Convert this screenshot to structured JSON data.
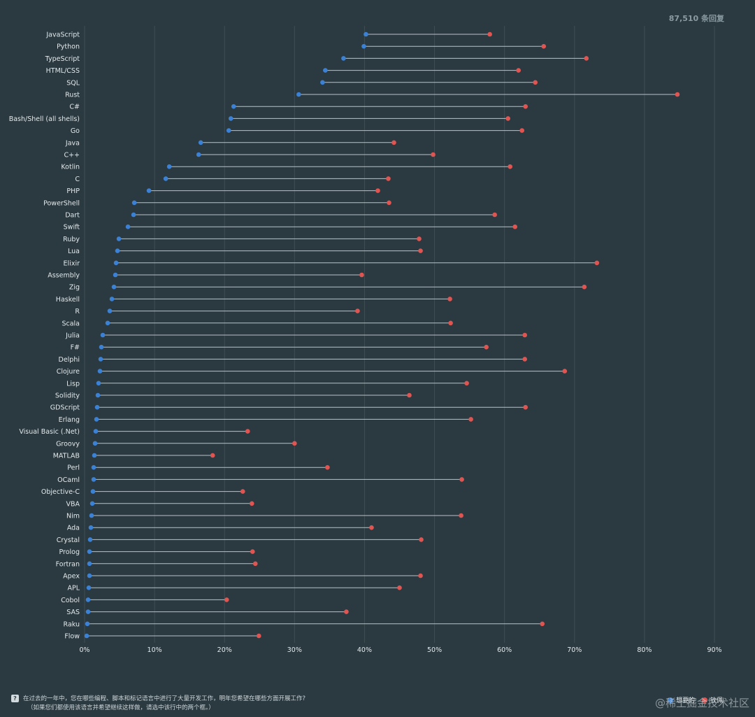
{
  "header": {
    "responses": "87,510 条回复"
  },
  "footer": {
    "question_icon": "?",
    "question": "在过去的一年中，您在哪些编程、脚本和标记语言中进行了大量开发工作，明年您希望在哪些方面开展工作?",
    "note": "（如果您们都使用该语言并希望继续这样做，请选中该行中的两个框。）"
  },
  "legend": {
    "want": "想要的",
    "admired": "钦佩"
  },
  "watermark": "@稀土掘金技术社区",
  "colors": {
    "want": "#3b82d6",
    "admired": "#e05552",
    "background": "#2b3a40"
  },
  "chart_data": {
    "type": "dumbbell",
    "x_ticks": [
      "0%",
      "10%",
      "20%",
      "30%",
      "40%",
      "50%",
      "60%",
      "70%",
      "80%",
      "90%"
    ],
    "xlim": [
      0,
      90
    ],
    "series": [
      {
        "name": "想要的",
        "key": "want"
      },
      {
        "name": "钦佩",
        "key": "admired"
      }
    ],
    "categories": [
      "JavaScript",
      "Python",
      "TypeScript",
      "HTML/CSS",
      "SQL",
      "Rust",
      "C#",
      "Bash/Shell (all shells)",
      "Go",
      "Java",
      "C++",
      "Kotlin",
      "C",
      "PHP",
      "PowerShell",
      "Dart",
      "Swift",
      "Ruby",
      "Lua",
      "Elixir",
      "Assembly",
      "Zig",
      "Haskell",
      "R",
      "Scala",
      "Julia",
      "F#",
      "Delphi",
      "Clojure",
      "Lisp",
      "Solidity",
      "GDScript",
      "Erlang",
      "Visual Basic (.Net)",
      "Groovy",
      "MATLAB",
      "Perl",
      "OCaml",
      "Objective-C",
      "VBA",
      "Nim",
      "Ada",
      "Crystal",
      "Prolog",
      "Fortran",
      "Apex",
      "APL",
      "Cobol",
      "SAS",
      "Raku",
      "Flow"
    ],
    "want": [
      40.2,
      39.9,
      37.0,
      34.4,
      34.0,
      30.6,
      21.3,
      20.9,
      20.6,
      16.6,
      16.3,
      12.1,
      11.6,
      9.2,
      7.1,
      7.0,
      6.2,
      4.9,
      4.7,
      4.5,
      4.4,
      4.2,
      3.9,
      3.6,
      3.3,
      2.6,
      2.4,
      2.3,
      2.2,
      2.0,
      1.9,
      1.8,
      1.7,
      1.6,
      1.5,
      1.4,
      1.3,
      1.3,
      1.2,
      1.1,
      1.0,
      0.9,
      0.8,
      0.7,
      0.7,
      0.7,
      0.6,
      0.5,
      0.5,
      0.4,
      0.3
    ],
    "admired": [
      57.9,
      65.6,
      71.7,
      62.0,
      64.4,
      84.7,
      63.0,
      60.5,
      62.5,
      44.2,
      49.8,
      60.8,
      43.4,
      41.9,
      43.5,
      58.6,
      61.5,
      47.8,
      48.0,
      73.2,
      39.6,
      71.4,
      52.2,
      39.0,
      52.3,
      62.9,
      57.4,
      62.9,
      68.6,
      54.6,
      46.4,
      63.0,
      55.2,
      23.3,
      30.0,
      18.3,
      34.7,
      53.9,
      22.6,
      23.9,
      53.8,
      41.0,
      48.1,
      24.0,
      24.4,
      48.0,
      45.0,
      20.3,
      37.4,
      65.4,
      24.9
    ]
  }
}
